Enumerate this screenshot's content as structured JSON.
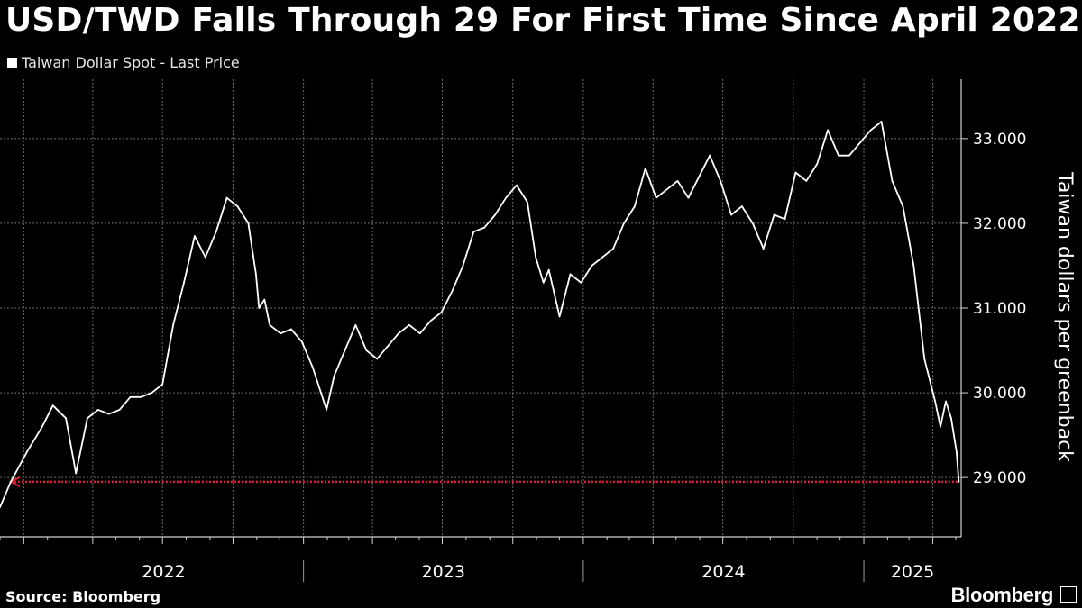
{
  "title": "USD/TWD Falls Through 29 For First Time Since April 2022",
  "source": "Source: Bloomberg",
  "brand": "Bloomberg",
  "brand_icon": "bloomberg-terminal-icon",
  "colors": {
    "background": "#000000",
    "line": "#ffffff",
    "marker": "#e0223c",
    "grid": "#6a6a6a"
  },
  "chart_data": {
    "type": "line",
    "ylabel": "Taiwan dollars per greenback",
    "ylim": [
      28.3,
      33.7
    ],
    "yticks": [
      29,
      30,
      31,
      32,
      33
    ],
    "ytick_labels": [
      "29.000",
      "30.000",
      "31.000",
      "32.000",
      "33.000"
    ],
    "xlim": [
      "2021-12-01",
      "2025-05-08"
    ],
    "xtick_labels": [
      "2022",
      "2023",
      "2024",
      "2025"
    ],
    "grid": true,
    "legend_position": "top-left",
    "series": [
      {
        "name": "Taiwan Dollar Spot - Last Price",
        "x": [
          "2021-12-01",
          "2021-12-15",
          "2022-01-05",
          "2022-01-25",
          "2022-02-08",
          "2022-02-25",
          "2022-03-10",
          "2022-03-25",
          "2022-04-08",
          "2022-04-22",
          "2022-05-06",
          "2022-05-20",
          "2022-06-03",
          "2022-06-17",
          "2022-07-01",
          "2022-07-15",
          "2022-07-29",
          "2022-08-12",
          "2022-08-26",
          "2022-09-09",
          "2022-09-23",
          "2022-10-07",
          "2022-10-21",
          "2022-10-31",
          "2022-11-04",
          "2022-11-11",
          "2022-11-18",
          "2022-12-02",
          "2022-12-16",
          "2022-12-30",
          "2023-01-13",
          "2023-01-31",
          "2023-02-10",
          "2023-02-24",
          "2023-03-10",
          "2023-03-24",
          "2023-04-07",
          "2023-04-21",
          "2023-05-05",
          "2023-05-19",
          "2023-06-02",
          "2023-06-16",
          "2023-06-30",
          "2023-07-14",
          "2023-07-28",
          "2023-08-11",
          "2023-08-25",
          "2023-09-08",
          "2023-09-22",
          "2023-10-06",
          "2023-10-20",
          "2023-10-31",
          "2023-11-10",
          "2023-11-17",
          "2023-12-01",
          "2023-12-15",
          "2023-12-29",
          "2024-01-12",
          "2024-01-26",
          "2024-02-09",
          "2024-02-23",
          "2024-03-08",
          "2024-03-22",
          "2024-04-05",
          "2024-04-19",
          "2024-05-03",
          "2024-05-17",
          "2024-05-31",
          "2024-06-14",
          "2024-06-28",
          "2024-07-12",
          "2024-07-26",
          "2024-08-09",
          "2024-08-23",
          "2024-09-06",
          "2024-09-20",
          "2024-10-04",
          "2024-10-18",
          "2024-11-01",
          "2024-11-15",
          "2024-11-29",
          "2024-12-13",
          "2024-12-27",
          "2025-01-10",
          "2025-01-24",
          "2025-02-07",
          "2025-02-21",
          "2025-03-07",
          "2025-03-21",
          "2025-04-04",
          "2025-04-11",
          "2025-04-18",
          "2025-04-25",
          "2025-05-02",
          "2025-05-05"
        ],
        "y": [
          28.65,
          28.95,
          29.3,
          29.6,
          29.85,
          29.7,
          29.05,
          29.7,
          29.8,
          29.75,
          29.8,
          29.95,
          29.95,
          30.0,
          30.1,
          30.8,
          31.3,
          31.85,
          31.6,
          31.9,
          32.3,
          32.2,
          32.0,
          31.4,
          31.0,
          31.1,
          30.8,
          30.7,
          30.75,
          30.6,
          30.3,
          29.8,
          30.2,
          30.5,
          30.8,
          30.5,
          30.4,
          30.55,
          30.7,
          30.8,
          30.7,
          30.85,
          30.95,
          31.2,
          31.5,
          31.9,
          31.95,
          32.1,
          32.3,
          32.45,
          32.25,
          31.6,
          31.3,
          31.45,
          30.9,
          31.4,
          31.3,
          31.5,
          31.6,
          31.7,
          32.0,
          32.2,
          32.65,
          32.3,
          32.4,
          32.5,
          32.3,
          32.55,
          32.8,
          32.5,
          32.1,
          32.2,
          32.0,
          31.7,
          32.1,
          32.05,
          32.6,
          32.5,
          32.7,
          33.1,
          32.8,
          32.8,
          32.95,
          33.1,
          33.2,
          32.5,
          32.2,
          31.5,
          30.4,
          29.9,
          29.6,
          29.9,
          29.7,
          29.3,
          28.95
        ]
      },
      {
        "name": "29.000 level marker",
        "type": "hline",
        "y": 28.95,
        "x_start": "2021-12-15",
        "x_end": "2025-05-05"
      }
    ]
  }
}
